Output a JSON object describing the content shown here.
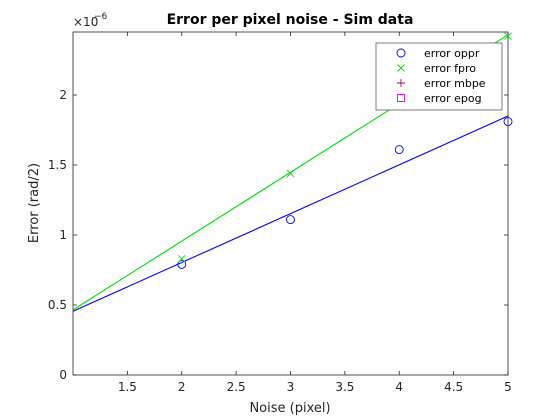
{
  "chart_data": {
    "type": "scatter",
    "title": "Error per pixel noise  - Sim data",
    "xlabel": "Noise (pixel)",
    "ylabel": "Error (rad/2)",
    "exponent_label": "×10",
    "exponent_power": "−6",
    "xlim": [
      1,
      5
    ],
    "ylim": [
      0,
      2.45
    ],
    "x_ticks": [
      1.5,
      2,
      2.5,
      3,
      3.5,
      4,
      4.5,
      5
    ],
    "x_tick_labels": [
      "1.5",
      "2",
      "2.5",
      "3",
      "3.5",
      "4",
      "4.5",
      "5"
    ],
    "y_ticks": [
      0,
      0.5,
      1,
      1.5,
      2
    ],
    "y_tick_labels": [
      "0",
      "0.5",
      "1",
      "1.5",
      "2"
    ],
    "grid": false,
    "legend_position": "top-right",
    "series": [
      {
        "name": "error oppr",
        "marker": "circle",
        "color": "#0000ff",
        "points": [
          [
            2,
            0.79
          ],
          [
            3,
            1.11
          ],
          [
            4,
            1.61
          ],
          [
            5,
            1.81
          ]
        ],
        "fit_line": [
          [
            1,
            0.455
          ],
          [
            5,
            1.85
          ]
        ]
      },
      {
        "name": "error fpro",
        "marker": "x",
        "color": "#00dd00",
        "points": [
          [
            2,
            0.83
          ],
          [
            3,
            1.44
          ],
          [
            5,
            2.42
          ]
        ],
        "fit_line": [
          [
            1,
            0.465
          ],
          [
            5,
            2.43
          ]
        ]
      },
      {
        "name": "error mbpe",
        "marker": "plus",
        "color": "#b0004a",
        "points": []
      },
      {
        "name": "error epog",
        "marker": "square",
        "color": "#e000e0",
        "points": []
      }
    ]
  }
}
